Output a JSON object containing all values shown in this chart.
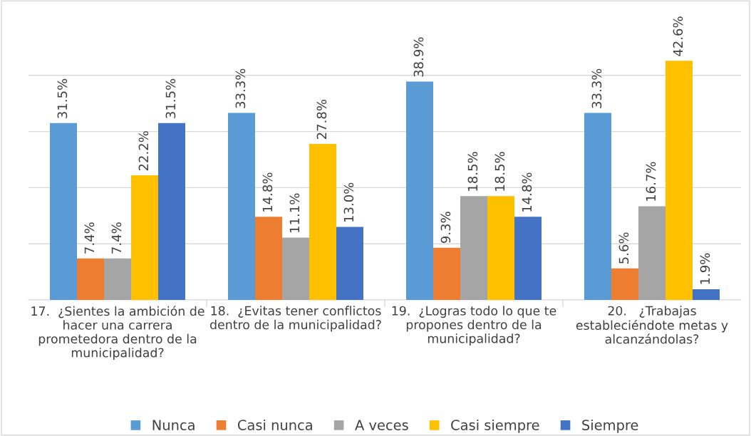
{
  "chart_data": {
    "type": "bar",
    "categories": [
      "17.  ¿Sientes la ambición de\nhacer una carrera\nprometedora dentro de la\nmunicipalidad?",
      "18.  ¿Evitas tener conflictos\ndentro de la municipalidad?",
      "19.  ¿Logras todo lo que te\npropones dentro de la\nmunicipalidad?",
      "20.   ¿Trabajas\nestableciéndote metas y\nalcanzándolas?"
    ],
    "series": [
      {
        "name": "Nunca",
        "color": "#5b9bd5",
        "values": [
          31.5,
          33.3,
          38.9,
          33.3
        ],
        "value_labels": [
          "31.5%",
          "33.3%",
          "38.9%",
          "33.3%"
        ]
      },
      {
        "name": "Casi nunca",
        "color": "#ed7d31",
        "values": [
          7.4,
          14.8,
          9.3,
          5.6
        ],
        "value_labels": [
          "7.4%",
          "14.8%",
          "9.3%",
          "5.6%"
        ]
      },
      {
        "name": "A veces",
        "color": "#a5a5a5",
        "values": [
          7.4,
          11.1,
          18.5,
          16.7
        ],
        "value_labels": [
          "7.4%",
          "11.1%",
          "18.5%",
          "16.7%"
        ]
      },
      {
        "name": "Casi siempre",
        "color": "#ffc000",
        "values": [
          22.2,
          27.8,
          18.5,
          42.6
        ],
        "value_labels": [
          "22.2%",
          "27.8%",
          "18.5%",
          "42.6%"
        ]
      },
      {
        "name": "Siempre",
        "color": "#4472c4",
        "values": [
          31.5,
          13.0,
          14.8,
          1.9
        ],
        "value_labels": [
          "31.5%",
          "13.0%",
          "14.8%",
          "1.9%"
        ]
      }
    ],
    "grid": "y",
    "legend": "bottom",
    "tick_labels": "x"
  }
}
